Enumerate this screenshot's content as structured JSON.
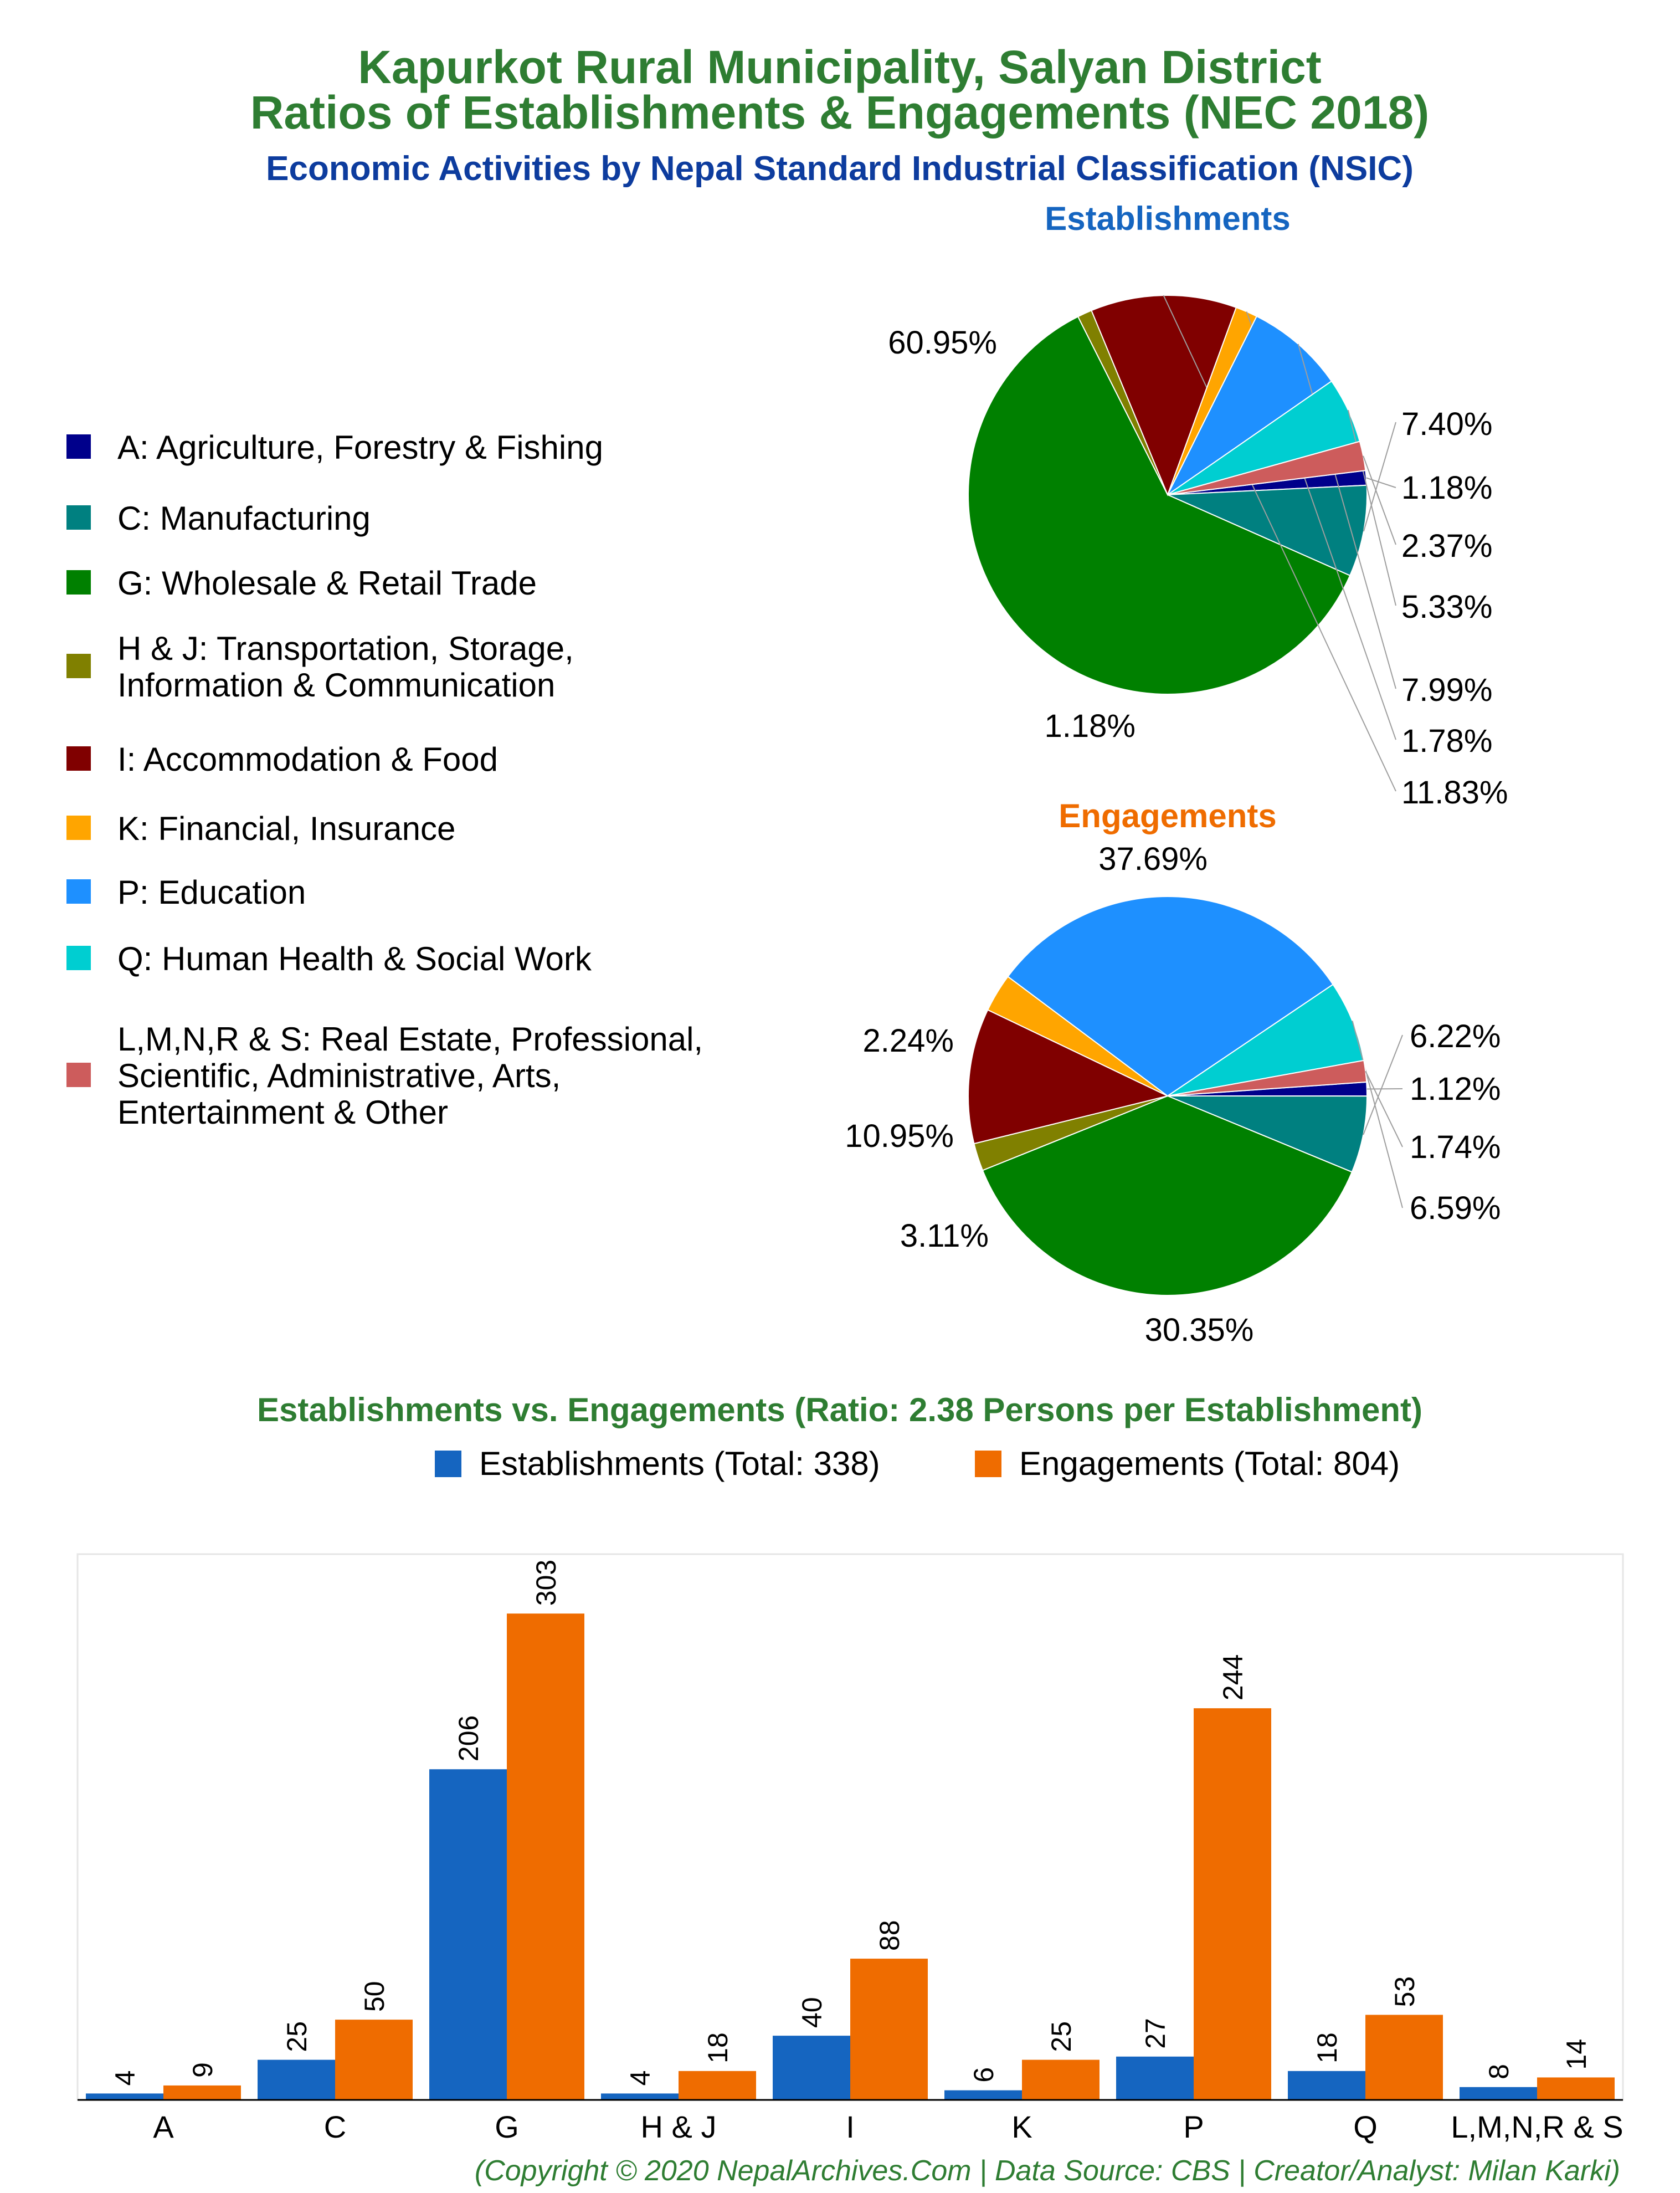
{
  "titles": {
    "line1": "Kapurkot Rural Municipality, Salyan District",
    "line2": "Ratios of Establishments & Engagements (NEC 2018)",
    "subtitle": "Economic Activities by Nepal Standard Industrial Classification (NSIC)",
    "establishments_pie": "Establishments",
    "engagements_pie": "Engagements",
    "bar_title": "Establishments vs. Engagements (Ratio: 2.38 Persons per Establishment)",
    "copyright": "(Copyright © 2020 NepalArchives.Com | Data Source: CBS | Creator/Analyst: Milan Karki)"
  },
  "colors": {
    "title_green": "#2e7d32",
    "subtitle_blue": "#0d3c9e",
    "establishments_blue": "#1565c0",
    "engagements_orange": "#ef6c00"
  },
  "legend": [
    {
      "lines": [
        "A: Agriculture, Forestry & Fishing"
      ],
      "color": "#00008b"
    },
    {
      "lines": [
        "C: Manufacturing"
      ],
      "color": "#008080"
    },
    {
      "lines": [
        "G: Wholesale & Retail Trade"
      ],
      "color": "#008000"
    },
    {
      "lines": [
        "H & J: Transportation, Storage,",
        "Information & Communication"
      ],
      "color": "#808000"
    },
    {
      "lines": [
        "I: Accommodation & Food"
      ],
      "color": "#800000"
    },
    {
      "lines": [
        "K: Financial, Insurance"
      ],
      "color": "#ffa500"
    },
    {
      "lines": [
        "P: Education"
      ],
      "color": "#1e90ff"
    },
    {
      "lines": [
        "Q: Human Health & Social Work"
      ],
      "color": "#00ced1"
    },
    {
      "lines": [
        "L,M,N,R & S: Real Estate, Professional,",
        "Scientific, Administrative, Arts,",
        "Entertainment & Other"
      ],
      "color": "#cd5c5c"
    }
  ],
  "chart_data": [
    {
      "type": "pie",
      "title": "Establishments",
      "categories": [
        "A",
        "C",
        "G",
        "H & J",
        "I",
        "K",
        "P",
        "Q",
        "L,M,N,R & S"
      ],
      "values": [
        1.18,
        7.4,
        60.95,
        1.18,
        11.83,
        1.78,
        7.99,
        5.33,
        2.37
      ],
      "labels": [
        "1.18%",
        "7.40%",
        "60.95%",
        "1.18%",
        "11.83%",
        "1.78%",
        "7.99%",
        "5.33%",
        "2.37%"
      ]
    },
    {
      "type": "pie",
      "title": "Engagements",
      "categories": [
        "A",
        "C",
        "G",
        "H & J",
        "I",
        "K",
        "P",
        "Q",
        "L,M,N,R & S"
      ],
      "values": [
        1.12,
        6.22,
        37.69,
        2.24,
        10.95,
        3.11,
        30.35,
        6.59,
        1.74
      ],
      "labels": [
        "1.12%",
        "6.22%",
        "37.69%",
        "2.24%",
        "10.95%",
        "3.11%",
        "30.35%",
        "6.59%",
        "1.74%"
      ]
    },
    {
      "type": "bar",
      "title": "Establishments vs. Engagements (Ratio: 2.38 Persons per Establishment)",
      "categories": [
        "A",
        "C",
        "G",
        "H & J",
        "I",
        "K",
        "P",
        "Q",
        "L,M,N,R & S"
      ],
      "series": [
        {
          "name": "Establishments (Total: 338)",
          "values": [
            4,
            25,
            206,
            4,
            40,
            6,
            27,
            18,
            8
          ]
        },
        {
          "name": "Engagements (Total: 804)",
          "values": [
            9,
            50,
            303,
            18,
            88,
            25,
            244,
            53,
            14
          ]
        }
      ],
      "ylim": [
        0,
        340
      ],
      "legend": "top"
    }
  ]
}
